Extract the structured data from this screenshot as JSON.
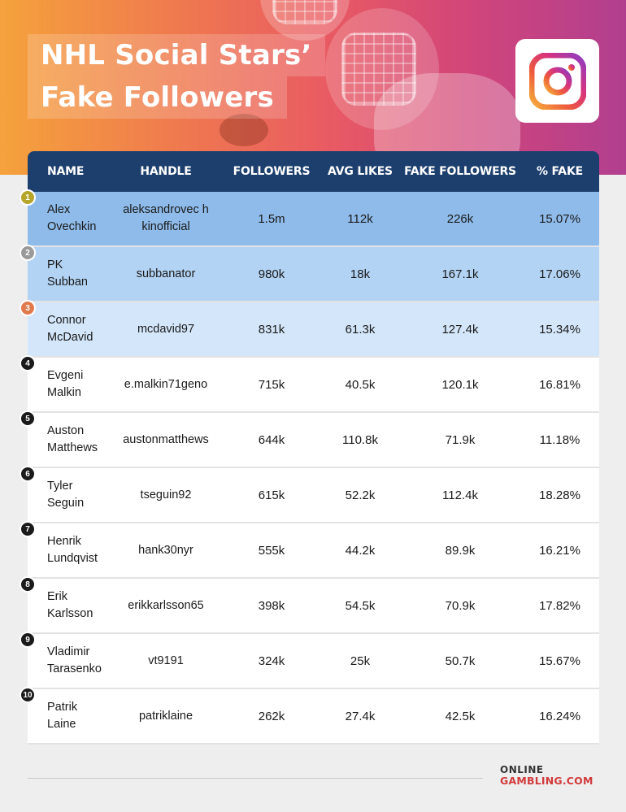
{
  "header": {
    "title_line1": "NHL Social Stars’",
    "title_line2": "Fake Followers"
  },
  "colors": {
    "header_bg": "#1d3f6e",
    "row1_bg": "#8ebbe9",
    "row2_bg": "#b2d3f3",
    "row3_bg": "#d4e7fa",
    "row_bg": "#ffffff",
    "rank1": "#b5a529",
    "rank2": "#9a9a9a",
    "rank3": "#e07a4c",
    "rank_default": "#1a1a1a"
  },
  "icons": {
    "social": "instagram-icon"
  },
  "chart_data": {
    "type": "table",
    "columns": [
      "NAME",
      "HANDLE",
      "FOLLOWERS",
      "AVG LIKES",
      "FAKE FOLLOWERS",
      "% FAKE"
    ],
    "rows": [
      {
        "rank": "1",
        "name": "Alex\nOvechkin",
        "handle": "aleksandrovec hkinofficial",
        "followers": "1.5m",
        "avg_likes": "112k",
        "fake_followers": "226k",
        "pct_fake": "15.07%"
      },
      {
        "rank": "2",
        "name": "PK\nSubban",
        "handle": "subbanator",
        "followers": "980k",
        "avg_likes": "18k",
        "fake_followers": "167.1k",
        "pct_fake": "17.06%"
      },
      {
        "rank": "3",
        "name": "Connor\nMcDavid",
        "handle": "mcdavid97",
        "followers": "831k",
        "avg_likes": "61.3k",
        "fake_followers": "127.4k",
        "pct_fake": "15.34%"
      },
      {
        "rank": "4",
        "name": "Evgeni\nMalkin",
        "handle": "e.malkin71geno",
        "followers": "715k",
        "avg_likes": "40.5k",
        "fake_followers": "120.1k",
        "pct_fake": "16.81%"
      },
      {
        "rank": "5",
        "name": "Auston\nMatthews",
        "handle": "austonmatthews",
        "followers": "644k",
        "avg_likes": "110.8k",
        "fake_followers": "71.9k",
        "pct_fake": "11.18%"
      },
      {
        "rank": "6",
        "name": "Tyler\nSeguin",
        "handle": "tseguin92",
        "followers": "615k",
        "avg_likes": "52.2k",
        "fake_followers": "112.4k",
        "pct_fake": "18.28%"
      },
      {
        "rank": "7",
        "name": "Henrik\nLundqvist",
        "handle": "hank30nyr",
        "followers": "555k",
        "avg_likes": "44.2k",
        "fake_followers": "89.9k",
        "pct_fake": "16.21%"
      },
      {
        "rank": "8",
        "name": "Erik\nKarlsson",
        "handle": "erikkarlsson65",
        "followers": "398k",
        "avg_likes": "54.5k",
        "fake_followers": "70.9k",
        "pct_fake": "17.82%"
      },
      {
        "rank": "9",
        "name": "Vladimir\nTarasenko",
        "handle": "vt9191",
        "followers": "324k",
        "avg_likes": "25k",
        "fake_followers": "50.7k",
        "pct_fake": "15.67%"
      },
      {
        "rank": "10",
        "name": "Patrik\nLaine",
        "handle": "patriklaine",
        "followers": "262k",
        "avg_likes": "27.4k",
        "fake_followers": "42.5k",
        "pct_fake": "16.24%"
      }
    ]
  },
  "footer": {
    "brand_line1": "ONLINE",
    "brand_line2": "GAMBLING.COM"
  }
}
